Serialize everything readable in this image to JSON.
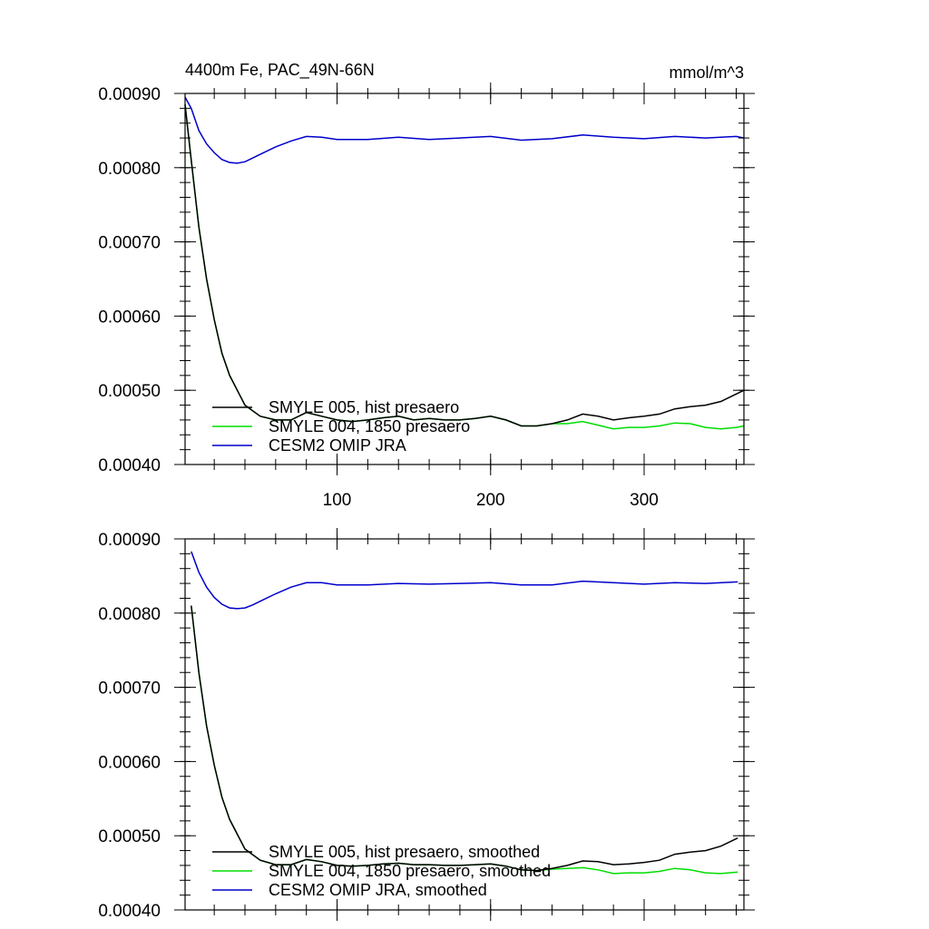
{
  "chart_data": [
    {
      "type": "line",
      "title_left": "4400m Fe, PAC_49N-66N",
      "title_right": "mmol/m^3",
      "xlim": [
        1,
        365
      ],
      "ylim": [
        0.0004,
        0.0009
      ],
      "xticks": [
        100,
        200,
        300
      ],
      "yticks": [
        "0.00040",
        "0.00050",
        "0.00060",
        "0.00070",
        "0.00080",
        "0.00090"
      ],
      "grid": false,
      "legend_position": "bottom-left",
      "series": [
        {
          "name": "SMYLE 005, hist presaero",
          "color": "#000000",
          "x": [
            1,
            5,
            10,
            15,
            20,
            25,
            30,
            40,
            50,
            60,
            70,
            80,
            90,
            100,
            110,
            120,
            130,
            140,
            150,
            160,
            170,
            180,
            190,
            200,
            210,
            220,
            230,
            240,
            250,
            260,
            270,
            280,
            290,
            300,
            310,
            320,
            330,
            340,
            350,
            360,
            365
          ],
          "y": [
            0.000885,
            0.00081,
            0.00072,
            0.00065,
            0.000595,
            0.00055,
            0.00052,
            0.00048,
            0.000465,
            0.00046,
            0.00046,
            0.00047,
            0.000465,
            0.00046,
            0.000458,
            0.00046,
            0.000463,
            0.000465,
            0.00046,
            0.000462,
            0.00046,
            0.00046,
            0.000462,
            0.000465,
            0.00046,
            0.000452,
            0.000452,
            0.000455,
            0.00046,
            0.000468,
            0.000465,
            0.00046,
            0.000463,
            0.000465,
            0.000468,
            0.000475,
            0.000478,
            0.00048,
            0.000485,
            0.000495,
            0.0005
          ]
        },
        {
          "name": "SMYLE 004, 1850 presaero",
          "color": "#00dd00",
          "x": [
            1,
            5,
            10,
            15,
            20,
            25,
            30,
            40,
            50,
            60,
            70,
            80,
            90,
            100,
            110,
            120,
            130,
            140,
            150,
            160,
            170,
            180,
            190,
            200,
            210,
            220,
            230,
            240,
            250,
            260,
            270,
            280,
            290,
            300,
            310,
            320,
            330,
            340,
            350,
            360,
            365
          ],
          "y": [
            0.000885,
            0.00081,
            0.00072,
            0.00065,
            0.000595,
            0.00055,
            0.00052,
            0.00048,
            0.000465,
            0.00046,
            0.00046,
            0.00047,
            0.000465,
            0.00046,
            0.000458,
            0.00046,
            0.000463,
            0.000465,
            0.00046,
            0.000462,
            0.00046,
            0.00046,
            0.000462,
            0.000465,
            0.00046,
            0.000452,
            0.000452,
            0.000455,
            0.000455,
            0.000458,
            0.000453,
            0.000448,
            0.00045,
            0.00045,
            0.000452,
            0.000456,
            0.000455,
            0.00045,
            0.000448,
            0.00045,
            0.000452
          ]
        },
        {
          "name": "CESM2 OMIP JRA",
          "color": "#0000cc",
          "x": [
            1,
            5,
            10,
            15,
            20,
            25,
            30,
            35,
            40,
            45,
            50,
            60,
            70,
            80,
            90,
            100,
            120,
            140,
            160,
            180,
            200,
            220,
            240,
            260,
            280,
            300,
            320,
            340,
            360,
            365
          ],
          "y": [
            0.000895,
            0.00088,
            0.00085,
            0.000832,
            0.00082,
            0.000811,
            0.000807,
            0.000806,
            0.000808,
            0.000813,
            0.000818,
            0.000828,
            0.000836,
            0.000842,
            0.000841,
            0.000838,
            0.000838,
            0.000841,
            0.000838,
            0.00084,
            0.000842,
            0.000837,
            0.000839,
            0.000844,
            0.000841,
            0.000839,
            0.000842,
            0.00084,
            0.000842,
            0.00084
          ]
        }
      ]
    },
    {
      "type": "line",
      "xlim": [
        1,
        365
      ],
      "ylim": [
        0.0004,
        0.0009
      ],
      "xticks": [
        100,
        200,
        300
      ],
      "yticks": [
        "0.00040",
        "0.00050",
        "0.00060",
        "0.00070",
        "0.00080",
        "0.00090"
      ],
      "grid": false,
      "legend_position": "bottom-left",
      "series": [
        {
          "name": "SMYLE 005, hist presaero, smoothed",
          "color": "#000000",
          "x": [
            5,
            10,
            15,
            20,
            25,
            30,
            40,
            50,
            60,
            70,
            80,
            90,
            100,
            110,
            120,
            130,
            140,
            150,
            160,
            170,
            180,
            190,
            200,
            210,
            220,
            230,
            240,
            250,
            260,
            270,
            280,
            290,
            300,
            310,
            320,
            330,
            340,
            350,
            361
          ],
          "y": [
            0.00081,
            0.00072,
            0.000648,
            0.000595,
            0.000552,
            0.000522,
            0.000482,
            0.000467,
            0.000461,
            0.000461,
            0.000468,
            0.000465,
            0.00046,
            0.000459,
            0.00046,
            0.000462,
            0.000463,
            0.000461,
            0.000461,
            0.00046,
            0.00046,
            0.000461,
            0.000462,
            0.000459,
            0.000454,
            0.000453,
            0.000456,
            0.00046,
            0.000466,
            0.000465,
            0.000461,
            0.000462,
            0.000464,
            0.000467,
            0.000475,
            0.000478,
            0.00048,
            0.000486,
            0.000497
          ]
        },
        {
          "name": "SMYLE 004, 1850 presaero, smoothed",
          "color": "#00dd00",
          "x": [
            5,
            10,
            15,
            20,
            25,
            30,
            40,
            50,
            60,
            70,
            80,
            90,
            100,
            110,
            120,
            130,
            140,
            150,
            160,
            170,
            180,
            190,
            200,
            210,
            220,
            230,
            240,
            250,
            260,
            270,
            280,
            290,
            300,
            310,
            320,
            330,
            340,
            350,
            361
          ],
          "y": [
            0.00081,
            0.00072,
            0.000648,
            0.000595,
            0.000552,
            0.000522,
            0.000482,
            0.000467,
            0.000461,
            0.000461,
            0.000468,
            0.000465,
            0.00046,
            0.000459,
            0.00046,
            0.000462,
            0.000463,
            0.000461,
            0.000461,
            0.00046,
            0.00046,
            0.000461,
            0.000462,
            0.000459,
            0.000454,
            0.000453,
            0.000455,
            0.000456,
            0.000457,
            0.000454,
            0.000449,
            0.00045,
            0.00045,
            0.000452,
            0.000456,
            0.000454,
            0.00045,
            0.000449,
            0.000451
          ]
        },
        {
          "name": "CESM2 OMIP JRA, smoothed",
          "color": "#0000cc",
          "x": [
            5,
            10,
            15,
            20,
            25,
            30,
            35,
            40,
            45,
            50,
            60,
            70,
            80,
            90,
            100,
            120,
            140,
            160,
            180,
            200,
            220,
            240,
            260,
            280,
            300,
            320,
            340,
            361
          ],
          "y": [
            0.000883,
            0.000855,
            0.000835,
            0.000821,
            0.000812,
            0.000807,
            0.000806,
            0.000807,
            0.000811,
            0.000816,
            0.000826,
            0.000835,
            0.000841,
            0.000841,
            0.000838,
            0.000838,
            0.00084,
            0.000839,
            0.00084,
            0.000841,
            0.000838,
            0.000838,
            0.000843,
            0.000841,
            0.000839,
            0.000841,
            0.00084,
            0.000842
          ]
        }
      ]
    }
  ]
}
